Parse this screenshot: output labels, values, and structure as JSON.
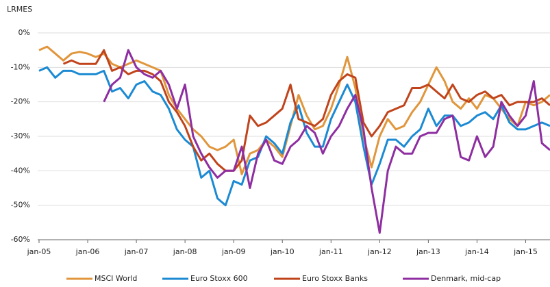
{
  "chart_data": {
    "type": "line",
    "title": "LRMES",
    "x": [
      "2005-01",
      "2005-03",
      "2005-05",
      "2005-07",
      "2005-09",
      "2005-11",
      "2006-01",
      "2006-03",
      "2006-05",
      "2006-07",
      "2006-09",
      "2006-11",
      "2007-01",
      "2007-03",
      "2007-05",
      "2007-07",
      "2007-09",
      "2007-11",
      "2008-01",
      "2008-03",
      "2008-05",
      "2008-07",
      "2008-09",
      "2008-11",
      "2009-01",
      "2009-03",
      "2009-05",
      "2009-07",
      "2009-09",
      "2009-11",
      "2010-01",
      "2010-03",
      "2010-05",
      "2010-07",
      "2010-09",
      "2010-11",
      "2011-01",
      "2011-03",
      "2011-05",
      "2011-07",
      "2011-09",
      "2011-11",
      "2012-01",
      "2012-03",
      "2012-05",
      "2012-07",
      "2012-09",
      "2012-11",
      "2013-01",
      "2013-03",
      "2013-05",
      "2013-07",
      "2013-09",
      "2013-11",
      "2014-01",
      "2014-03",
      "2014-05",
      "2014-07",
      "2014-09",
      "2014-11",
      "2015-01",
      "2015-03",
      "2015-05",
      "2015-07"
    ],
    "series": [
      {
        "name": "MSCI World",
        "color": "#e0963c",
        "values": [
          -5,
          -4,
          -6,
          -8,
          -6,
          -5.5,
          -6,
          -7,
          -6,
          -9,
          -10,
          -9,
          -8,
          -9,
          -10,
          -11,
          -18,
          -22,
          -25,
          -28,
          -30,
          -33,
          -34,
          -33,
          -31,
          -41,
          -35,
          -34,
          -31,
          -33,
          -36,
          -27,
          -18,
          -24,
          -28,
          -27,
          -22,
          -15,
          -7,
          -16,
          -30,
          -39,
          -30,
          -25,
          -28,
          -27,
          -23,
          -20,
          -15,
          -10,
          -14,
          -20,
          -22,
          -19,
          -22,
          -18,
          -19,
          -22,
          -25,
          -27,
          -20,
          -21,
          -20,
          -18
        ]
      },
      {
        "name": "Euro Stoxx 600",
        "color": "#1b8ad3",
        "values": [
          -11,
          -10,
          -13,
          -11,
          -11,
          -12,
          -12,
          -12,
          -11,
          -17,
          -16,
          -19,
          -15,
          -14,
          -17,
          -18,
          -22,
          -28,
          -31,
          -33,
          -42,
          -40,
          -48,
          -50,
          -43,
          -44,
          -37,
          -36,
          -30,
          -32,
          -35,
          -26,
          -21,
          -29,
          -33,
          -33,
          -25,
          -20,
          -15,
          -20,
          -33,
          -44,
          -38,
          -31,
          -31,
          -33,
          -30,
          -28,
          -22,
          -27,
          -24,
          -24,
          -27,
          -26,
          -24,
          -23,
          -25,
          -21,
          -26,
          -28,
          -28,
          -27,
          -26,
          -27
        ]
      },
      {
        "name": "Euro Stoxx Banks",
        "color": "#c0441b",
        "values": [
          null,
          null,
          null,
          -9,
          -8,
          -9,
          -9,
          -9,
          -5,
          -11,
          -10,
          -12,
          -11,
          -11,
          -12,
          -14,
          -20,
          -23,
          -27,
          -33,
          -37,
          -35,
          -38,
          -40,
          -40,
          -37,
          -24,
          -27,
          -26,
          -24,
          -22,
          -15,
          -25,
          -26,
          -27,
          -25,
          -18,
          -14,
          -12,
          -13,
          -26,
          -30,
          -27,
          -23,
          -22,
          -21,
          -16,
          -16,
          -15,
          -17,
          -19,
          -15,
          -19,
          -20,
          -18,
          -17,
          -19,
          -18,
          -21,
          -20,
          -20,
          -20,
          -19,
          -21
        ]
      },
      {
        "name": "Denmark, mid-cap",
        "color": "#8e2ea1",
        "values": [
          null,
          null,
          null,
          null,
          null,
          null,
          null,
          null,
          -20,
          -15,
          -13,
          -5,
          -10,
          -12,
          -13,
          -11,
          -15,
          -22,
          -15,
          -30,
          -35,
          -39,
          -42,
          -40,
          -40,
          -33,
          -45,
          -35,
          -31,
          -37,
          -38,
          -33,
          -31,
          -27,
          -29,
          -35,
          -30,
          -27,
          -22,
          -18,
          -28,
          -45,
          -58,
          -40,
          -33,
          -35,
          -35,
          -30,
          -29,
          -29,
          -25,
          -24,
          -36,
          -37,
          -30,
          -36,
          -33,
          -20,
          -24,
          -27,
          -24,
          -14,
          -32,
          -34
        ]
      }
    ],
    "xlim": [
      "2005-01",
      "2015-07"
    ],
    "xticks": [
      {
        "value": "2005-01",
        "label": "jan-05"
      },
      {
        "value": "2006-01",
        "label": "jan-06"
      },
      {
        "value": "2007-01",
        "label": "jan-07"
      },
      {
        "value": "2008-01",
        "label": "jan-08"
      },
      {
        "value": "2009-01",
        "label": "jan-09"
      },
      {
        "value": "2010-01",
        "label": "jan-10"
      },
      {
        "value": "2011-01",
        "label": "jan-11"
      },
      {
        "value": "2012-01",
        "label": "jan-12"
      },
      {
        "value": "2013-01",
        "label": "jan-13"
      },
      {
        "value": "2014-01",
        "label": "jan-14"
      },
      {
        "value": "2015-01",
        "label": "jan-15"
      }
    ],
    "ylim": [
      -60,
      0
    ],
    "yticks": [
      {
        "value": 0,
        "label": "0%"
      },
      {
        "value": -10,
        "label": "-10%"
      },
      {
        "value": -20,
        "label": "-20%"
      },
      {
        "value": -30,
        "label": "-30%"
      },
      {
        "value": -40,
        "label": "-40%"
      },
      {
        "value": -50,
        "label": "-50%"
      },
      {
        "value": -60,
        "label": "-60%"
      }
    ],
    "grid": true,
    "legend": "bottom"
  }
}
